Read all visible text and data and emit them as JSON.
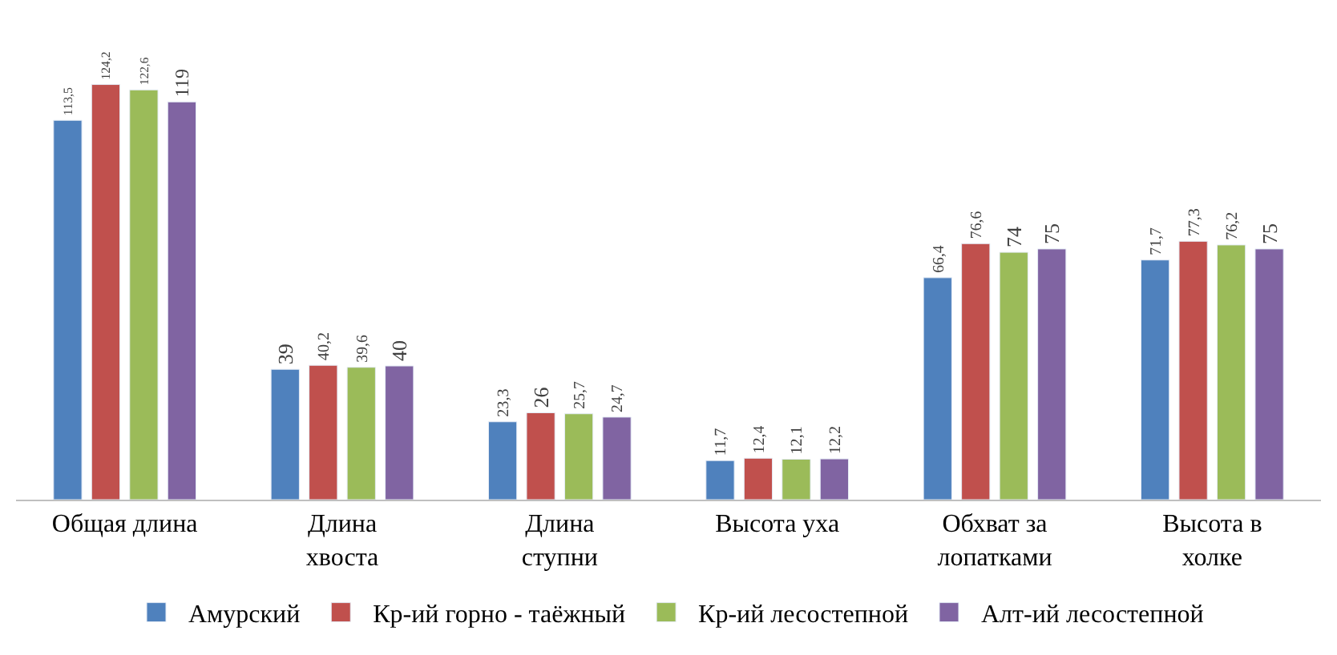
{
  "chart_data": {
    "type": "bar",
    "categories": [
      "Общая длина",
      "Длина хвоста",
      "Длина ступни",
      "Высота уха",
      "Обхват за лопатками",
      "Высота в холке"
    ],
    "series": [
      {
        "name": "Амурский",
        "color": "#4f81bd",
        "values": [
          113.5,
          39,
          23.3,
          11.7,
          66.4,
          71.7
        ],
        "value_labels": [
          "113,5",
          "39",
          "23,3",
          "11,7",
          "66,4",
          "71,7"
        ]
      },
      {
        "name": "Кр-ий горно - таёжный",
        "color": "#c0504d",
        "values": [
          124.2,
          40.2,
          26,
          12.4,
          76.6,
          77.3
        ],
        "value_labels": [
          "124,2",
          "40,2",
          "26",
          "12,4",
          "76,6",
          "77,3"
        ]
      },
      {
        "name": "Кр-ий лесостепной",
        "color": "#9bbb59",
        "values": [
          122.6,
          39.6,
          25.7,
          12.1,
          74,
          76.2
        ],
        "value_labels": [
          "122,6",
          "39,6",
          "25,7",
          "12,1",
          "74",
          "76,2"
        ]
      },
      {
        "name": "Алт-ий лесостепной",
        "color": "#8064a2",
        "values": [
          119,
          40,
          24.7,
          12.2,
          75,
          75
        ],
        "value_labels": [
          "119",
          "40",
          "24,7",
          "12,2",
          "75",
          "75"
        ]
      }
    ],
    "legend": "bottom"
  }
}
